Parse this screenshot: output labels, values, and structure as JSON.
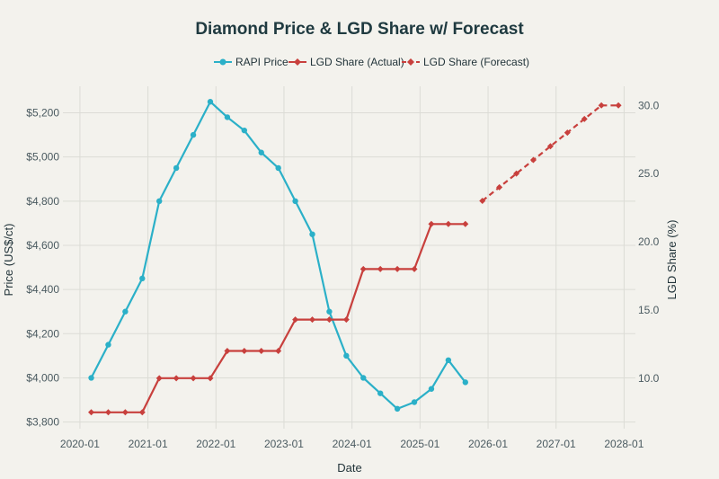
{
  "chart_data": {
    "type": "line",
    "title": "Diamond Price & LGD Share w/ Forecast",
    "xlabel": "Date",
    "ylabel": "Price (US$/ct)",
    "y2label": "LGD Share (%)",
    "x_ticks": [
      "2020-01",
      "2021-01",
      "2022-01",
      "2023-01",
      "2024-01",
      "2025-01",
      "2026-01",
      "2027-01",
      "2028-01"
    ],
    "y_ticks": [
      "$3,800",
      "$4,000",
      "$4,200",
      "$4,400",
      "$4,600",
      "$4,800",
      "$5,000",
      "$5,200"
    ],
    "y2_ticks": [
      "10.0",
      "15.0",
      "20.0",
      "25.0",
      "30.0"
    ],
    "ylim": [
      3770,
      5320
    ],
    "y2lim": [
      6.3,
      31.4
    ],
    "grid": true,
    "legend_position": "top-center",
    "colors": {
      "price": "#2bb0c8",
      "lgd": "#c8403d"
    },
    "series": [
      {
        "name": "RAPI Price",
        "axis": "left",
        "style": "solid",
        "points": [
          [
            "2020-03",
            4000
          ],
          [
            "2020-06",
            4150
          ],
          [
            "2020-09",
            4300
          ],
          [
            "2020-12",
            4450
          ],
          [
            "2021-03",
            4800
          ],
          [
            "2021-06",
            4950
          ],
          [
            "2021-09",
            5100
          ],
          [
            "2021-12",
            5250
          ],
          [
            "2022-03",
            5180
          ],
          [
            "2022-06",
            5120
          ],
          [
            "2022-09",
            5020
          ],
          [
            "2022-12",
            4950
          ],
          [
            "2023-03",
            4800
          ],
          [
            "2023-06",
            4650
          ],
          [
            "2023-09",
            4300
          ],
          [
            "2023-12",
            4100
          ],
          [
            "2024-03",
            4000
          ],
          [
            "2024-06",
            3930
          ],
          [
            "2024-09",
            3860
          ],
          [
            "2024-12",
            3890
          ],
          [
            "2025-03",
            3950
          ],
          [
            "2025-06",
            4080
          ],
          [
            "2025-09",
            3980
          ]
        ]
      },
      {
        "name": "LGD Share (Actual)",
        "axis": "right",
        "style": "solid",
        "points": [
          [
            "2020-03",
            7.5
          ],
          [
            "2020-06",
            7.5
          ],
          [
            "2020-09",
            7.5
          ],
          [
            "2020-12",
            7.5
          ],
          [
            "2021-03",
            10
          ],
          [
            "2021-06",
            10
          ],
          [
            "2021-09",
            10
          ],
          [
            "2021-12",
            10
          ],
          [
            "2022-03",
            12
          ],
          [
            "2022-06",
            12
          ],
          [
            "2022-09",
            12
          ],
          [
            "2022-12",
            12
          ],
          [
            "2023-03",
            14.3
          ],
          [
            "2023-06",
            14.3
          ],
          [
            "2023-09",
            14.3
          ],
          [
            "2023-12",
            14.3
          ],
          [
            "2024-03",
            18
          ],
          [
            "2024-06",
            18
          ],
          [
            "2024-09",
            18
          ],
          [
            "2024-12",
            18
          ],
          [
            "2025-03",
            21.3
          ],
          [
            "2025-06",
            21.3
          ],
          [
            "2025-09",
            21.3
          ]
        ]
      },
      {
        "name": "LGD Share (Forecast)",
        "axis": "right",
        "style": "dashed",
        "points": [
          [
            "2025-12",
            23
          ],
          [
            "2026-03",
            24
          ],
          [
            "2026-06",
            25
          ],
          [
            "2026-09",
            26
          ],
          [
            "2026-12",
            27
          ],
          [
            "2027-03",
            28
          ],
          [
            "2027-06",
            29
          ],
          [
            "2027-09",
            30
          ],
          [
            "2027-12",
            30
          ]
        ]
      }
    ]
  }
}
